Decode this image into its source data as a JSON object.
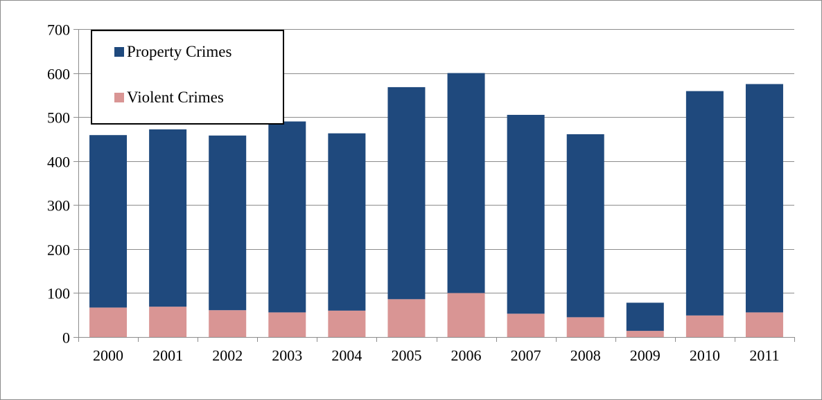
{
  "chart_data": {
    "type": "bar",
    "stacked": true,
    "title": "",
    "xlabel": "",
    "ylabel": "",
    "ylim": [
      0,
      700
    ],
    "yticks": [
      0,
      100,
      200,
      300,
      400,
      500,
      600,
      700
    ],
    "categories": [
      "2000",
      "2001",
      "2002",
      "2003",
      "2004",
      "2005",
      "2006",
      "2007",
      "2008",
      "2009",
      "2010",
      "2011"
    ],
    "series": [
      {
        "name": "Violent Crimes",
        "color": "#d99594",
        "values": [
          67,
          69,
          61,
          56,
          60,
          86,
          100,
          53,
          45,
          14,
          49,
          56
        ]
      },
      {
        "name": "Property Crimes",
        "color": "#1f497d",
        "values": [
          392,
          403,
          397,
          434,
          403,
          482,
          500,
          452,
          416,
          64,
          510,
          519
        ]
      }
    ],
    "grid": true,
    "legend": {
      "position": "top-left",
      "order": [
        "Property Crimes",
        "Violent Crimes"
      ]
    }
  }
}
